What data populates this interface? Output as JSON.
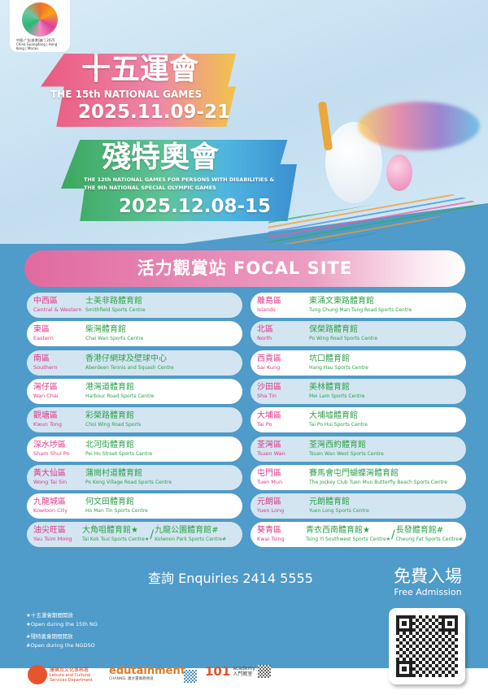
{
  "logo": {
    "text": "中国·广东|香港|澳门 2025 China Guangdong | Hong Kong | Macao"
  },
  "event1": {
    "title_zh": "十五運會",
    "title_en": "THE 15th NATIONAL GAMES",
    "dates": "2025.11.09-21"
  },
  "event2": {
    "title_zh": "殘特奧會",
    "title_en_1": "THE 12th NATIONAL GAMES FOR PERSONS WITH DISABILITIES &",
    "title_en_2": "THE 9th NATIONAL SPECIAL OLYMPIC GAMES",
    "dates": "2025.12.08-15"
  },
  "focal_site": {
    "title": "活力觀賞站 FOCAL SITE"
  },
  "left_sites": [
    {
      "district_zh": "中西區",
      "district_en": "Central & Western",
      "venue_zh": "士美非路體育館",
      "venue_en": "Smithfield Sports Centre"
    },
    {
      "district_zh": "東區",
      "district_en": "Eastern",
      "venue_zh": "柴灣體育館",
      "venue_en": "Chai Wan Sports Centre"
    },
    {
      "district_zh": "南區",
      "district_en": "Southern",
      "venue_zh": "香港仔網球及壁球中心",
      "venue_en": "Aberdeen Tennis and Squash Centre"
    },
    {
      "district_zh": "灣仔區",
      "district_en": "Wan Chai",
      "venue_zh": "港灣道體育館",
      "venue_en": "Harbour Road Sports Centre"
    },
    {
      "district_zh": "觀塘區",
      "district_en": "Kwun Tong",
      "venue_zh": "彩榮路體育館",
      "venue_en": "Choi Wing Road Sports"
    },
    {
      "district_zh": "深水埗區",
      "district_en": "Sham Shui Po",
      "venue_zh": "北河街體育館",
      "venue_en": "Pei Ho Street Sports Centre"
    },
    {
      "district_zh": "黃大仙區",
      "district_en": "Wong Tai Sin",
      "venue_zh": "蒲崗村道體育館",
      "venue_en": "Po Kong Village Road Sports Centre"
    },
    {
      "district_zh": "九龍城區",
      "district_en": "Kowloon City",
      "venue_zh": "何文田體育館",
      "venue_en": "Ho Man Tin Sports Centre"
    },
    {
      "district_zh": "油尖旺區",
      "district_en": "Yau Tsim Mong",
      "venue_zh": "大角咀體育館★",
      "venue_en": "Tai Kok Tsui Sports Centre★",
      "venue2_zh": "九龍公園體育館#",
      "venue2_en": "Kolwoon Park Sports Centre#"
    }
  ],
  "right_sites": [
    {
      "district_zh": "離島區",
      "district_en": "Islands",
      "venue_zh": "東涌文東路體育館",
      "venue_en": "Tung Chung Man Tung Road Sports Centre"
    },
    {
      "district_zh": "北區",
      "district_en": "North",
      "venue_zh": "保榮路體育館",
      "venue_en": "Po Wing Road Sports Centre"
    },
    {
      "district_zh": "西貢區",
      "district_en": "Sai Kung",
      "venue_zh": "坑口體育館",
      "venue_en": "Hang Hau Sports Centre"
    },
    {
      "district_zh": "沙田區",
      "district_en": "Sha Tin",
      "venue_zh": "美林體育館",
      "venue_en": "Mei Lam Sports Centre"
    },
    {
      "district_zh": "大埔區",
      "district_en": "Tai Po",
      "venue_zh": "大埔墟體育館",
      "venue_en": "Tai Po Hui Sports Centre"
    },
    {
      "district_zh": "荃灣區",
      "district_en": "Tsuen Wan",
      "venue_zh": "荃灣西約體育館",
      "venue_en": "Tsuen Wan West Sports Centre"
    },
    {
      "district_zh": "屯門區",
      "district_en": "Tuen Mun",
      "venue_zh": "賽馬會屯門蝴蝶灣體育館",
      "venue_en": "The Jockey Club Tuen Mun Butterfly Beach Sports Centre"
    },
    {
      "district_zh": "元朗區",
      "district_en": "Yuen Long",
      "venue_zh": "元朗體育館",
      "venue_en": "Yuen Long Sports Centre"
    },
    {
      "district_zh": "葵青區",
      "district_en": "Kwai Tsing",
      "venue_zh": "青衣西南體育館★",
      "venue_en": "Tsing Yi Southwest Sports Centre★",
      "venue2_zh": "長發體育館#",
      "venue2_en": "Cheung Fat Sports Centre#"
    }
  ],
  "enquiries": "查詢 Enquiries 2414 5555",
  "free_admission": {
    "zh": "免費入場",
    "en": "Free Admission"
  },
  "notes": [
    "★十五運會期間開放",
    "★Open during the 15th NG",
    "#殘特奧會期間開放",
    "#Open during the NGDSO"
  ],
  "footer": {
    "lcsd_zh": "康樂及文化事務署",
    "lcsd_en": "Leisure and Cultural Services Department",
    "edutainment": "edutainment",
    "edutainment_sub": "CHANNEL 康文署寓教頻道",
    "academy": "academy",
    "academy_zh": "入門教室",
    "academy_num": "101"
  },
  "colors": {
    "district": "#e0388a",
    "venue": "#2fa14b",
    "background_blue": "#4f9bc9",
    "row_light": "#d3e5f1"
  }
}
